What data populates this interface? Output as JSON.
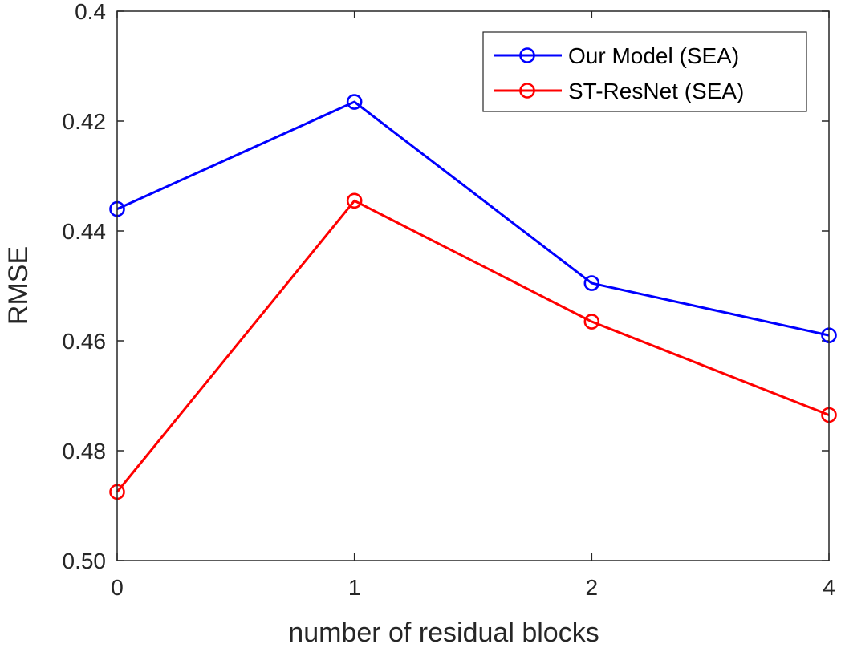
{
  "chart_data": {
    "type": "line",
    "categories": [
      "0",
      "1",
      "2",
      "4"
    ],
    "series": [
      {
        "name": "Our Model (SEA)",
        "color": "#0000ff",
        "values": [
          0.436,
          0.4165,
          0.4495,
          0.459
        ]
      },
      {
        "name": "ST-ResNet (SEA)",
        "color": "#ff0000",
        "values": [
          0.4875,
          0.4345,
          0.4565,
          0.4735
        ]
      }
    ],
    "title": "",
    "xlabel": "number of residual blocks",
    "ylabel": "RMSE",
    "ylim": [
      0.4,
      0.5
    ],
    "y_reversed": true,
    "yticks": [
      0.4,
      0.42,
      0.44,
      0.46,
      0.48,
      0.5
    ],
    "ytick_labels": [
      "0.4",
      "0.42",
      "0.44",
      "0.46",
      "0.48",
      "0.50"
    ],
    "grid": false,
    "legend_position": "top-right",
    "marker": "open-circle"
  }
}
